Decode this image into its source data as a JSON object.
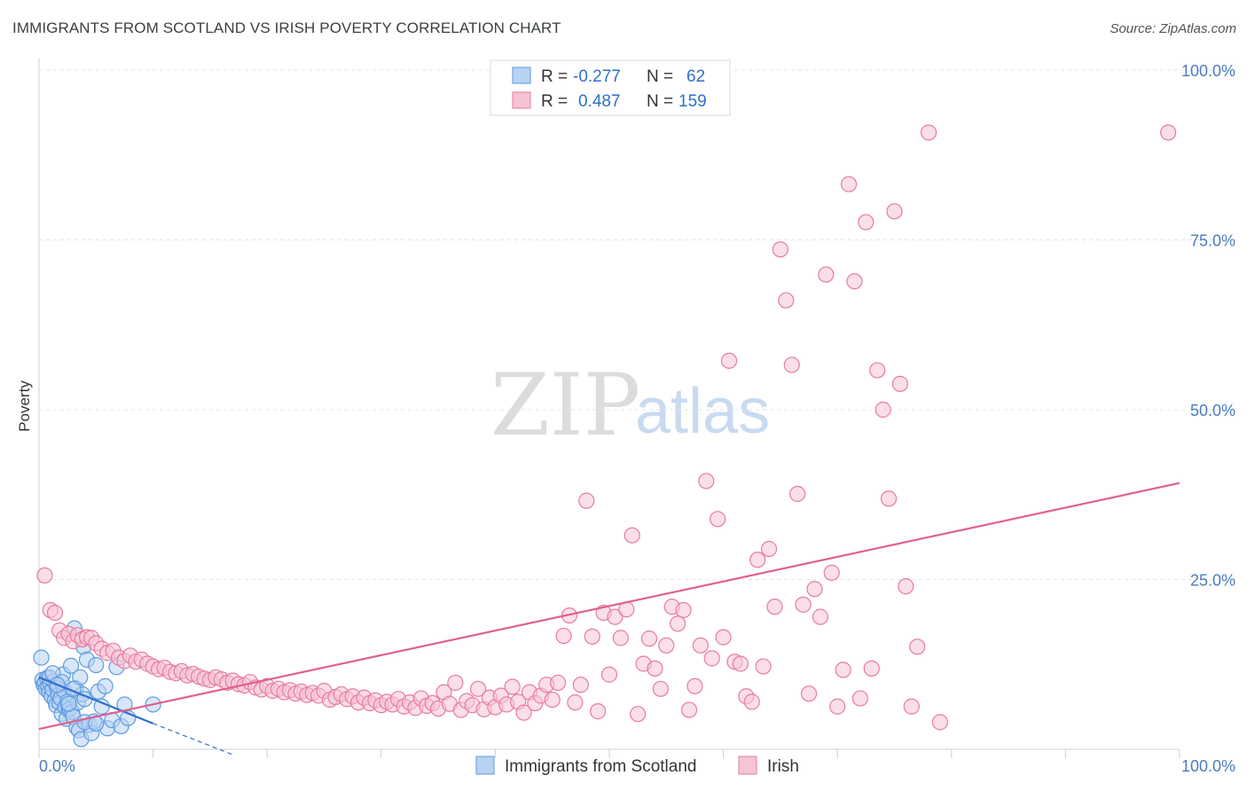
{
  "title": "IMMIGRANTS FROM SCOTLAND VS IRISH POVERTY CORRELATION CHART",
  "source": "Source: ZipAtlas.com",
  "colors": {
    "blue": "#5b9be0",
    "blue_fill": "#b8d2f3",
    "blue_line": "#2f6fcc",
    "pink": "#e87aa0",
    "pink_fill": "#f6c4d5",
    "pink_line": "#e0608e",
    "grid": "#dde3ea",
    "tick": "#4a7cc0"
  },
  "legend_top": {
    "series": [
      {
        "r_label": "R =",
        "r_value": "-0.277",
        "n_label": "N =",
        "n_value": "62"
      },
      {
        "r_label": "R =",
        "r_value": "0.487",
        "n_label": "N =",
        "n_value": "159"
      }
    ]
  },
  "watermark": {
    "zip": "ZIP",
    "atlas": "atlas"
  },
  "chart_data": {
    "type": "scatter",
    "xlabel": "",
    "ylabel": "Poverty",
    "xlim": [
      0,
      100
    ],
    "ylim": [
      0,
      100
    ],
    "x_tick_labels": [
      "0.0%",
      "100.0%"
    ],
    "y_ticks": [
      25,
      50,
      75,
      100
    ],
    "y_tick_labels": [
      "25.0%",
      "50.0%",
      "75.0%",
      "100.0%"
    ],
    "grid": true,
    "legend_position": "bottom",
    "series": [
      {
        "name": "Immigrants from Scotland",
        "color": "blue",
        "points": [
          [
            0.2,
            13.5
          ],
          [
            0.3,
            10.2
          ],
          [
            0.4,
            9.5
          ],
          [
            0.5,
            9.8
          ],
          [
            0.6,
            8.9
          ],
          [
            0.7,
            10.5
          ],
          [
            0.8,
            9.2
          ],
          [
            0.9,
            8.4
          ],
          [
            1.0,
            9.6
          ],
          [
            1.1,
            7.8
          ],
          [
            1.2,
            8.8
          ],
          [
            1.3,
            10.0
          ],
          [
            1.4,
            7.2
          ],
          [
            1.5,
            6.5
          ],
          [
            1.6,
            9.0
          ],
          [
            1.7,
            8.0
          ],
          [
            1.8,
            6.8
          ],
          [
            1.9,
            7.5
          ],
          [
            2.0,
            5.2
          ],
          [
            2.1,
            11.0
          ],
          [
            2.2,
            8.6
          ],
          [
            2.3,
            6.2
          ],
          [
            2.4,
            4.5
          ],
          [
            2.5,
            7.0
          ],
          [
            2.6,
            5.8
          ],
          [
            2.7,
            6.0
          ],
          [
            2.8,
            12.3
          ],
          [
            2.9,
            5.5
          ],
          [
            3.0,
            4.8
          ],
          [
            3.1,
            17.8
          ],
          [
            3.2,
            9.0
          ],
          [
            3.3,
            3.2
          ],
          [
            3.4,
            6.9
          ],
          [
            3.5,
            2.8
          ],
          [
            3.6,
            10.6
          ],
          [
            3.7,
            1.5
          ],
          [
            3.8,
            8.1
          ],
          [
            3.9,
            15.1
          ],
          [
            4.0,
            7.4
          ],
          [
            4.2,
            13.2
          ],
          [
            4.4,
            3.6
          ],
          [
            4.6,
            2.4
          ],
          [
            4.8,
            4.1
          ],
          [
            5.0,
            12.4
          ],
          [
            5.2,
            8.5
          ],
          [
            5.5,
            6.3
          ],
          [
            5.8,
            9.3
          ],
          [
            6.0,
            3.1
          ],
          [
            6.4,
            4.3
          ],
          [
            6.8,
            12.1
          ],
          [
            7.2,
            3.4
          ],
          [
            7.5,
            6.6
          ],
          [
            7.8,
            4.6
          ],
          [
            0.9,
            10.6
          ],
          [
            1.2,
            11.2
          ],
          [
            2.0,
            9.9
          ],
          [
            2.6,
            6.7
          ],
          [
            3.0,
            8.9
          ],
          [
            4.0,
            4.0
          ],
          [
            5.0,
            3.8
          ],
          [
            10.0,
            6.6
          ],
          [
            1.6,
            9.5
          ]
        ],
        "trend": {
          "x": [
            0,
            10
          ],
          "y": [
            10.6,
            3.8
          ],
          "dashed_to": [
            17,
            -0.8
          ]
        }
      },
      {
        "name": "Irish",
        "color": "pink",
        "points": [
          [
            0.5,
            25.6
          ],
          [
            1.0,
            20.5
          ],
          [
            1.4,
            20.1
          ],
          [
            1.8,
            17.5
          ],
          [
            2.2,
            16.4
          ],
          [
            2.6,
            17.0
          ],
          [
            3.0,
            15.9
          ],
          [
            3.4,
            16.8
          ],
          [
            3.8,
            16.2
          ],
          [
            4.2,
            16.5
          ],
          [
            4.6,
            16.4
          ],
          [
            5.0,
            15.6
          ],
          [
            5.5,
            14.8
          ],
          [
            6.0,
            14.2
          ],
          [
            6.5,
            14.5
          ],
          [
            7.0,
            13.5
          ],
          [
            7.5,
            13.0
          ],
          [
            8.0,
            13.8
          ],
          [
            8.5,
            12.9
          ],
          [
            9.0,
            13.2
          ],
          [
            9.5,
            12.6
          ],
          [
            10.0,
            12.2
          ],
          [
            10.5,
            11.8
          ],
          [
            11.0,
            12.0
          ],
          [
            11.5,
            11.4
          ],
          [
            12.0,
            11.2
          ],
          [
            12.5,
            11.5
          ],
          [
            13.0,
            10.9
          ],
          [
            13.5,
            11.1
          ],
          [
            14.0,
            10.7
          ],
          [
            14.5,
            10.4
          ],
          [
            15.0,
            10.2
          ],
          [
            15.5,
            10.6
          ],
          [
            16.0,
            10.3
          ],
          [
            16.5,
            9.8
          ],
          [
            17.0,
            10.1
          ],
          [
            17.5,
            9.6
          ],
          [
            18.0,
            9.4
          ],
          [
            18.5,
            9.9
          ],
          [
            19.0,
            9.1
          ],
          [
            19.5,
            8.8
          ],
          [
            20.0,
            9.3
          ],
          [
            20.5,
            8.6
          ],
          [
            21.0,
            8.9
          ],
          [
            21.5,
            8.4
          ],
          [
            22.0,
            8.7
          ],
          [
            22.5,
            8.2
          ],
          [
            23.0,
            8.5
          ],
          [
            23.5,
            8.0
          ],
          [
            24.0,
            8.3
          ],
          [
            24.5,
            7.9
          ],
          [
            25.0,
            8.6
          ],
          [
            25.5,
            7.3
          ],
          [
            26.0,
            7.7
          ],
          [
            26.5,
            8.1
          ],
          [
            27.0,
            7.4
          ],
          [
            27.5,
            7.8
          ],
          [
            28.0,
            6.9
          ],
          [
            28.5,
            7.6
          ],
          [
            29.0,
            6.8
          ],
          [
            29.5,
            7.2
          ],
          [
            30.0,
            6.5
          ],
          [
            30.5,
            7.0
          ],
          [
            31.0,
            6.6
          ],
          [
            31.5,
            7.4
          ],
          [
            32.0,
            6.3
          ],
          [
            32.5,
            6.9
          ],
          [
            33.0,
            6.1
          ],
          [
            33.5,
            7.5
          ],
          [
            34.0,
            6.4
          ],
          [
            34.5,
            6.8
          ],
          [
            35.0,
            6.0
          ],
          [
            35.5,
            8.4
          ],
          [
            36.0,
            6.7
          ],
          [
            36.5,
            9.8
          ],
          [
            37.0,
            5.8
          ],
          [
            37.5,
            7.1
          ],
          [
            38.0,
            6.5
          ],
          [
            38.5,
            8.9
          ],
          [
            39.0,
            5.9
          ],
          [
            39.5,
            7.6
          ],
          [
            40.0,
            6.2
          ],
          [
            40.5,
            7.9
          ],
          [
            41.0,
            6.6
          ],
          [
            41.5,
            9.2
          ],
          [
            42.0,
            7.0
          ],
          [
            42.5,
            5.4
          ],
          [
            43.0,
            8.4
          ],
          [
            43.5,
            6.8
          ],
          [
            44.0,
            7.9
          ],
          [
            44.5,
            9.5
          ],
          [
            45.0,
            7.3
          ],
          [
            45.5,
            9.8
          ],
          [
            46.0,
            16.7
          ],
          [
            46.5,
            19.7
          ],
          [
            47.0,
            6.9
          ],
          [
            47.5,
            9.5
          ],
          [
            48.0,
            36.6
          ],
          [
            48.5,
            16.6
          ],
          [
            49.0,
            5.6
          ],
          [
            49.5,
            20.1
          ],
          [
            50.0,
            11.0
          ],
          [
            50.5,
            19.5
          ],
          [
            51.0,
            16.4
          ],
          [
            51.5,
            20.6
          ],
          [
            52.0,
            31.5
          ],
          [
            52.5,
            5.2
          ],
          [
            53.0,
            12.6
          ],
          [
            53.5,
            16.3
          ],
          [
            54.0,
            11.9
          ],
          [
            54.5,
            8.9
          ],
          [
            55.0,
            15.3
          ],
          [
            55.5,
            21.0
          ],
          [
            56.0,
            18.5
          ],
          [
            56.5,
            20.5
          ],
          [
            57.0,
            5.8
          ],
          [
            57.5,
            9.3
          ],
          [
            58.0,
            15.3
          ],
          [
            58.5,
            39.5
          ],
          [
            59.0,
            13.4
          ],
          [
            59.5,
            33.9
          ],
          [
            60.0,
            16.5
          ],
          [
            60.5,
            57.2
          ],
          [
            61.0,
            12.9
          ],
          [
            61.5,
            12.6
          ],
          [
            62.0,
            7.8
          ],
          [
            62.5,
            7.0
          ],
          [
            63.0,
            27.9
          ],
          [
            63.5,
            12.2
          ],
          [
            64.0,
            29.5
          ],
          [
            64.5,
            21.0
          ],
          [
            65.0,
            73.6
          ],
          [
            65.5,
            66.1
          ],
          [
            66.0,
            56.6
          ],
          [
            66.5,
            37.6
          ],
          [
            67.0,
            21.3
          ],
          [
            67.5,
            8.2
          ],
          [
            68.0,
            23.6
          ],
          [
            68.5,
            19.5
          ],
          [
            69.0,
            69.9
          ],
          [
            69.5,
            26.0
          ],
          [
            70.0,
            6.3
          ],
          [
            70.5,
            11.7
          ],
          [
            71.0,
            83.2
          ],
          [
            71.5,
            68.9
          ],
          [
            72.0,
            7.5
          ],
          [
            72.5,
            77.6
          ],
          [
            73.0,
            11.9
          ],
          [
            73.5,
            55.8
          ],
          [
            74.0,
            50.0
          ],
          [
            74.5,
            36.9
          ],
          [
            75.0,
            79.2
          ],
          [
            75.5,
            53.8
          ],
          [
            76.0,
            24.0
          ],
          [
            76.5,
            6.3
          ],
          [
            77.0,
            15.1
          ],
          [
            78.0,
            90.8
          ],
          [
            79.0,
            4.0
          ],
          [
            99.0,
            90.8
          ]
        ],
        "trend": {
          "x": [
            0,
            100
          ],
          "y": [
            3.0,
            39.2
          ]
        }
      }
    ]
  }
}
